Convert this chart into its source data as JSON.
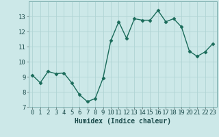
{
  "x": [
    0,
    1,
    2,
    3,
    4,
    5,
    6,
    7,
    8,
    9,
    10,
    11,
    12,
    13,
    14,
    15,
    16,
    17,
    18,
    19,
    20,
    21,
    22,
    23
  ],
  "y": [
    9.1,
    8.6,
    9.35,
    9.2,
    9.25,
    8.6,
    7.8,
    7.35,
    7.55,
    8.9,
    11.4,
    12.65,
    11.55,
    12.85,
    12.75,
    12.75,
    13.4,
    12.65,
    12.85,
    12.3,
    10.7,
    10.35,
    10.65,
    11.2
  ],
  "line_color": "#1a6b5a",
  "marker": "D",
  "markersize": 2.5,
  "linewidth": 1.0,
  "bg_color": "#cce8e8",
  "grid_color": "#b0d4d4",
  "xlabel": "Humidex (Indice chaleur)",
  "ylim": [
    7,
    14
  ],
  "xlim": [
    -0.5,
    23.5
  ],
  "yticks": [
    7,
    8,
    9,
    10,
    11,
    12,
    13
  ],
  "xticks": [
    0,
    1,
    2,
    3,
    4,
    5,
    6,
    7,
    8,
    9,
    10,
    11,
    12,
    13,
    14,
    15,
    16,
    17,
    18,
    19,
    20,
    21,
    22,
    23
  ],
  "xlabel_fontsize": 7,
  "tick_fontsize": 6.5
}
